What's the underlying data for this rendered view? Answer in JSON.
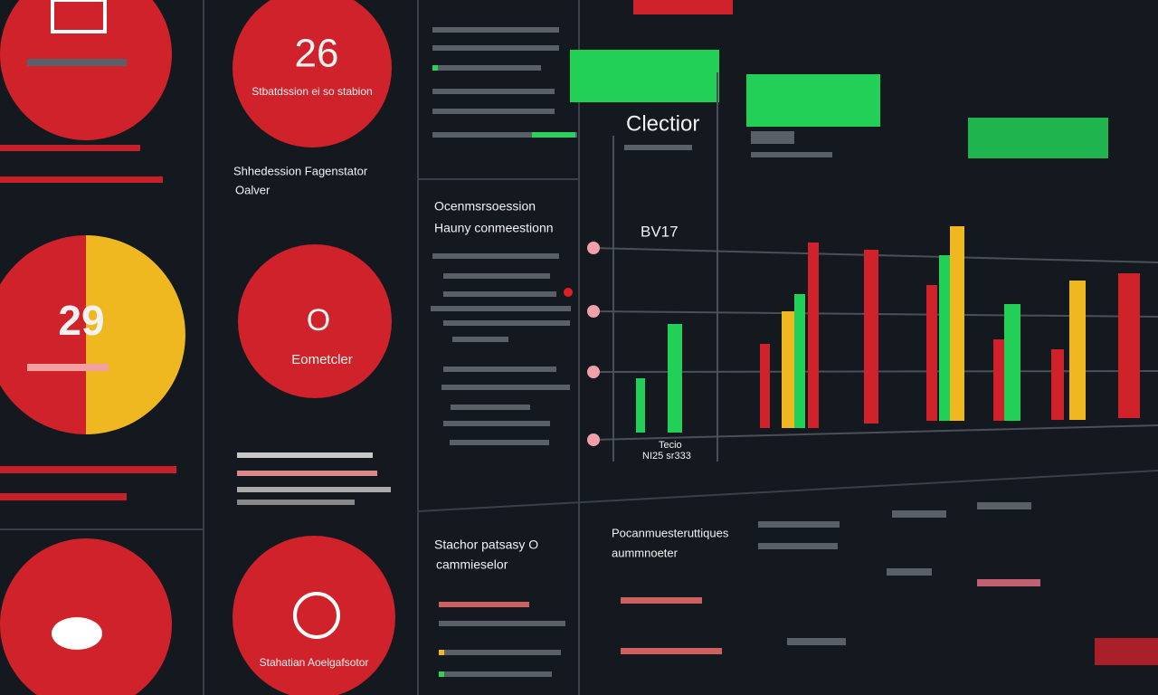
{
  "left_column": {
    "gauge_value": "29"
  },
  "center_column": {
    "card_1": {
      "value": "26",
      "caption": "Stbatdssion ei so stabion"
    },
    "heading": {
      "title": "Shhedession Fagenstator",
      "subtitle": "Oalver"
    },
    "card_2": {
      "value": "O",
      "caption": "Eometcler"
    },
    "card_3": {
      "caption": "Stahatian Aoelgafsotor"
    }
  },
  "list_panel": {
    "title": "Ocenmsrsoession",
    "subtitle": "Hauny conmeestionn"
  },
  "chart_panel": {
    "title": "Clectior",
    "badge": "BV17",
    "axis_note": "Tecio",
    "axis_note_2": "NI25 sr333"
  },
  "bottom_panels": [
    {
      "title": "Stachor patsasy O",
      "subtitle": "cammieselor"
    },
    {
      "title": "Pocanmuesteruttiques",
      "subtitle": "aummnoeter"
    }
  ]
}
